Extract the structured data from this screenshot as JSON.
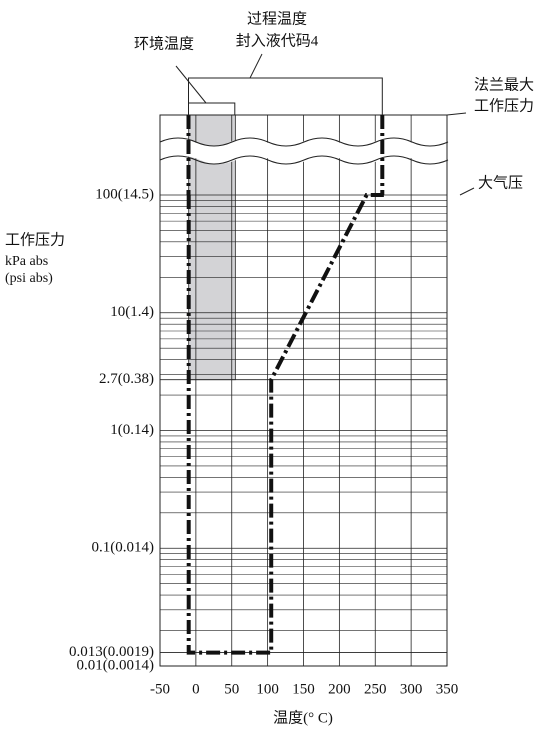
{
  "chart_data": {
    "type": "line",
    "xlabel": "温度(° C)",
    "ylabel": [
      "工作压力",
      "kPa abs",
      "(psi abs)"
    ],
    "annotations": {
      "ambient": "环境温度",
      "process": [
        "过程温度",
        "封入液代码4"
      ],
      "flange": [
        "法兰最大",
        "工作压力"
      ],
      "atmosphere": "大气压"
    },
    "xlim": [
      -50,
      350
    ],
    "xticks": [
      -50,
      0,
      50,
      100,
      150,
      200,
      250,
      300,
      350
    ],
    "ylim": [
      0.01,
      100
    ],
    "log_y": true,
    "yticks": [
      {
        "value": 100,
        "label": "100(14.5)"
      },
      {
        "value": 10,
        "label": "10(1.4)"
      },
      {
        "value": 2.7,
        "label": "2.7(0.38)"
      },
      {
        "value": 1,
        "label": "1(0.14)"
      },
      {
        "value": 0.1,
        "label": "0.1(0.014)"
      },
      {
        "value": 0.013,
        "label": "0.013(0.0019)"
      },
      {
        "value": 0.01,
        "label": "0.01(0.0014)"
      }
    ],
    "grid": true,
    "minor_grid": true,
    "series": [
      {
        "color": "#111111",
        "x": [
          -10,
          -10,
          105,
          105,
          238,
          262
        ],
        "values": [
          100,
          0.013,
          0.013,
          2.7,
          100,
          100
        ]
      }
    ],
    "shaded_region": {
      "x": [
        -10,
        55
      ],
      "y_min": 2.7,
      "color": "#d3d3d6"
    }
  }
}
